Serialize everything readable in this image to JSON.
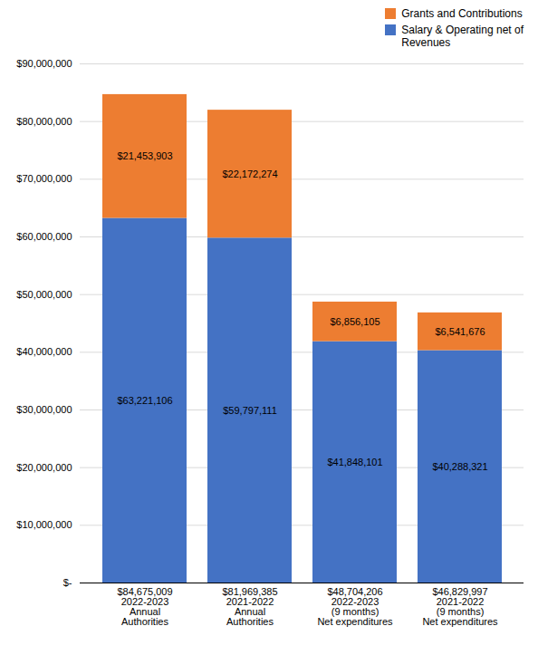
{
  "chart_data": {
    "type": "bar",
    "stacked": true,
    "data_labels": true,
    "grid": true,
    "legend": "upper right",
    "categories": [
      "$84,675,009\n2022-2023\nAnnual\nAuthorities",
      "$81,969,385\n2021-2022\nAnnual\nAuthorities",
      "$48,704,206\n2022-2023\n(9 months)\nNet expenditures",
      "$46,829,997\n2021-2022\n(9 months)\nNet expenditures"
    ],
    "series": [
      {
        "name": "Salary & Operating net of\nRevenues",
        "color": "#4472C4",
        "values": [
          63221106,
          59797111,
          41848101,
          40288321
        ],
        "value_labels": [
          "$63,221,106",
          "$59,797,111",
          "$41,848,101",
          "$40,288,321"
        ]
      },
      {
        "name": "Grants and Contributions",
        "color": "#ED7D31",
        "values": [
          21453903,
          22172274,
          6856105,
          6541676
        ],
        "value_labels": [
          "$21,453,903",
          "$22,172,274",
          "$6,856,105",
          "$6,541,676"
        ]
      }
    ],
    "ylim": [
      0,
      90000000
    ],
    "yticks": [
      {
        "value": 0,
        "label": "$-"
      },
      {
        "value": 10000000,
        "label": "$10,000,000"
      },
      {
        "value": 20000000,
        "label": "$20,000,000"
      },
      {
        "value": 30000000,
        "label": "$30,000,000"
      },
      {
        "value": 40000000,
        "label": "$40,000,000"
      },
      {
        "value": 50000000,
        "label": "$50,000,000"
      },
      {
        "value": 60000000,
        "label": "$60,000,000"
      },
      {
        "value": 70000000,
        "label": "$70,000,000"
      },
      {
        "value": 80000000,
        "label": "$80,000,000"
      },
      {
        "value": 90000000,
        "label": "$90,000,000"
      }
    ]
  }
}
